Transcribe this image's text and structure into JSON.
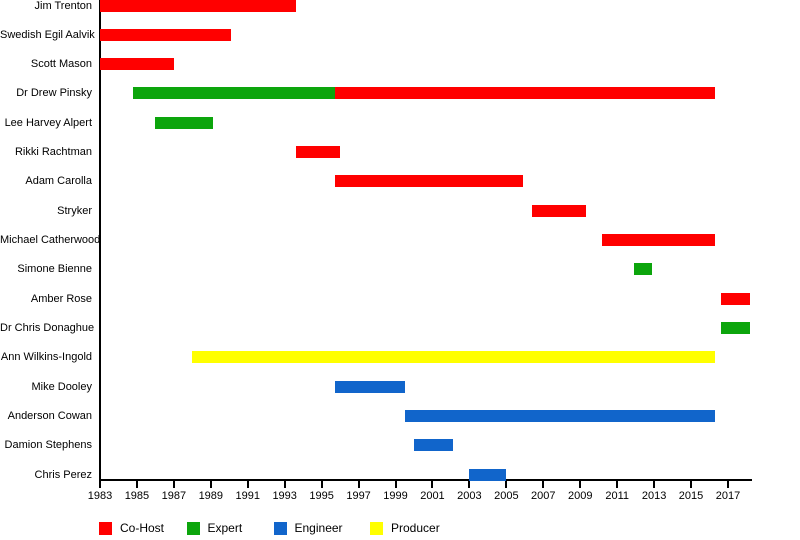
{
  "chart_data": {
    "type": "bar",
    "variant": "gantt-timeline",
    "title": "",
    "xlabel": "",
    "ylabel": "",
    "x_axis": {
      "min": 1983,
      "max": 2018.3,
      "ticks": [
        1983,
        1985,
        1987,
        1989,
        1991,
        1993,
        1995,
        1997,
        1999,
        2001,
        2003,
        2005,
        2007,
        2009,
        2011,
        2013,
        2015,
        2017
      ],
      "grid": false
    },
    "legend": {
      "position": "bottom",
      "items": [
        {
          "label": "Co-Host",
          "color": "#FF0000"
        },
        {
          "label": "Expert",
          "color": "#0CA50C"
        },
        {
          "label": "Engineer",
          "color": "#1165CB"
        },
        {
          "label": "Producer",
          "color": "#FFFF00"
        }
      ]
    },
    "rows": [
      {
        "name": "Jim Trenton",
        "segments": [
          {
            "role": "Co-Host",
            "start": 1983.0,
            "end": 1993.6
          }
        ]
      },
      {
        "name": "Swedish Egil Aalvik",
        "segments": [
          {
            "role": "Co-Host",
            "start": 1983.0,
            "end": 1990.1
          }
        ]
      },
      {
        "name": "Scott Mason",
        "segments": [
          {
            "role": "Co-Host",
            "start": 1983.0,
            "end": 1987.0
          }
        ]
      },
      {
        "name": "Dr Drew Pinsky",
        "segments": [
          {
            "role": "Expert",
            "start": 1984.8,
            "end": 1995.7
          },
          {
            "role": "Co-Host",
            "start": 1995.7,
            "end": 2016.3
          }
        ]
      },
      {
        "name": "Lee Harvey Alpert",
        "segments": [
          {
            "role": "Expert",
            "start": 1986.0,
            "end": 1989.1
          }
        ]
      },
      {
        "name": "Rikki Rachtman",
        "segments": [
          {
            "role": "Co-Host",
            "start": 1993.6,
            "end": 1996.0
          }
        ]
      },
      {
        "name": "Adam Carolla",
        "segments": [
          {
            "role": "Co-Host",
            "start": 1995.7,
            "end": 2005.9
          }
        ]
      },
      {
        "name": "Stryker",
        "segments": [
          {
            "role": "Co-Host",
            "start": 2006.4,
            "end": 2009.3
          }
        ]
      },
      {
        "name": "Michael Catherwood",
        "segments": [
          {
            "role": "Co-Host",
            "start": 2010.2,
            "end": 2016.3
          }
        ]
      },
      {
        "name": "Simone Bienne",
        "segments": [
          {
            "role": "Expert",
            "start": 2011.9,
            "end": 2012.9
          }
        ]
      },
      {
        "name": "Amber Rose",
        "segments": [
          {
            "role": "Co-Host",
            "start": 2016.6,
            "end": 2018.2
          }
        ]
      },
      {
        "name": "Dr Chris Donaghue",
        "segments": [
          {
            "role": "Expert",
            "start": 2016.6,
            "end": 2018.2
          }
        ]
      },
      {
        "name": "Ann Wilkins-Ingold",
        "segments": [
          {
            "role": "Producer",
            "start": 1988.0,
            "end": 2016.3
          }
        ]
      },
      {
        "name": "Mike Dooley",
        "segments": [
          {
            "role": "Engineer",
            "start": 1995.7,
            "end": 1999.5
          }
        ]
      },
      {
        "name": "Anderson Cowan",
        "segments": [
          {
            "role": "Engineer",
            "start": 1999.5,
            "end": 2016.3
          }
        ]
      },
      {
        "name": "Damion Stephens",
        "segments": [
          {
            "role": "Engineer",
            "start": 2000.0,
            "end": 2002.1
          }
        ]
      },
      {
        "name": "Chris Perez",
        "segments": [
          {
            "role": "Engineer",
            "start": 2003.0,
            "end": 2005.0
          }
        ]
      }
    ]
  }
}
